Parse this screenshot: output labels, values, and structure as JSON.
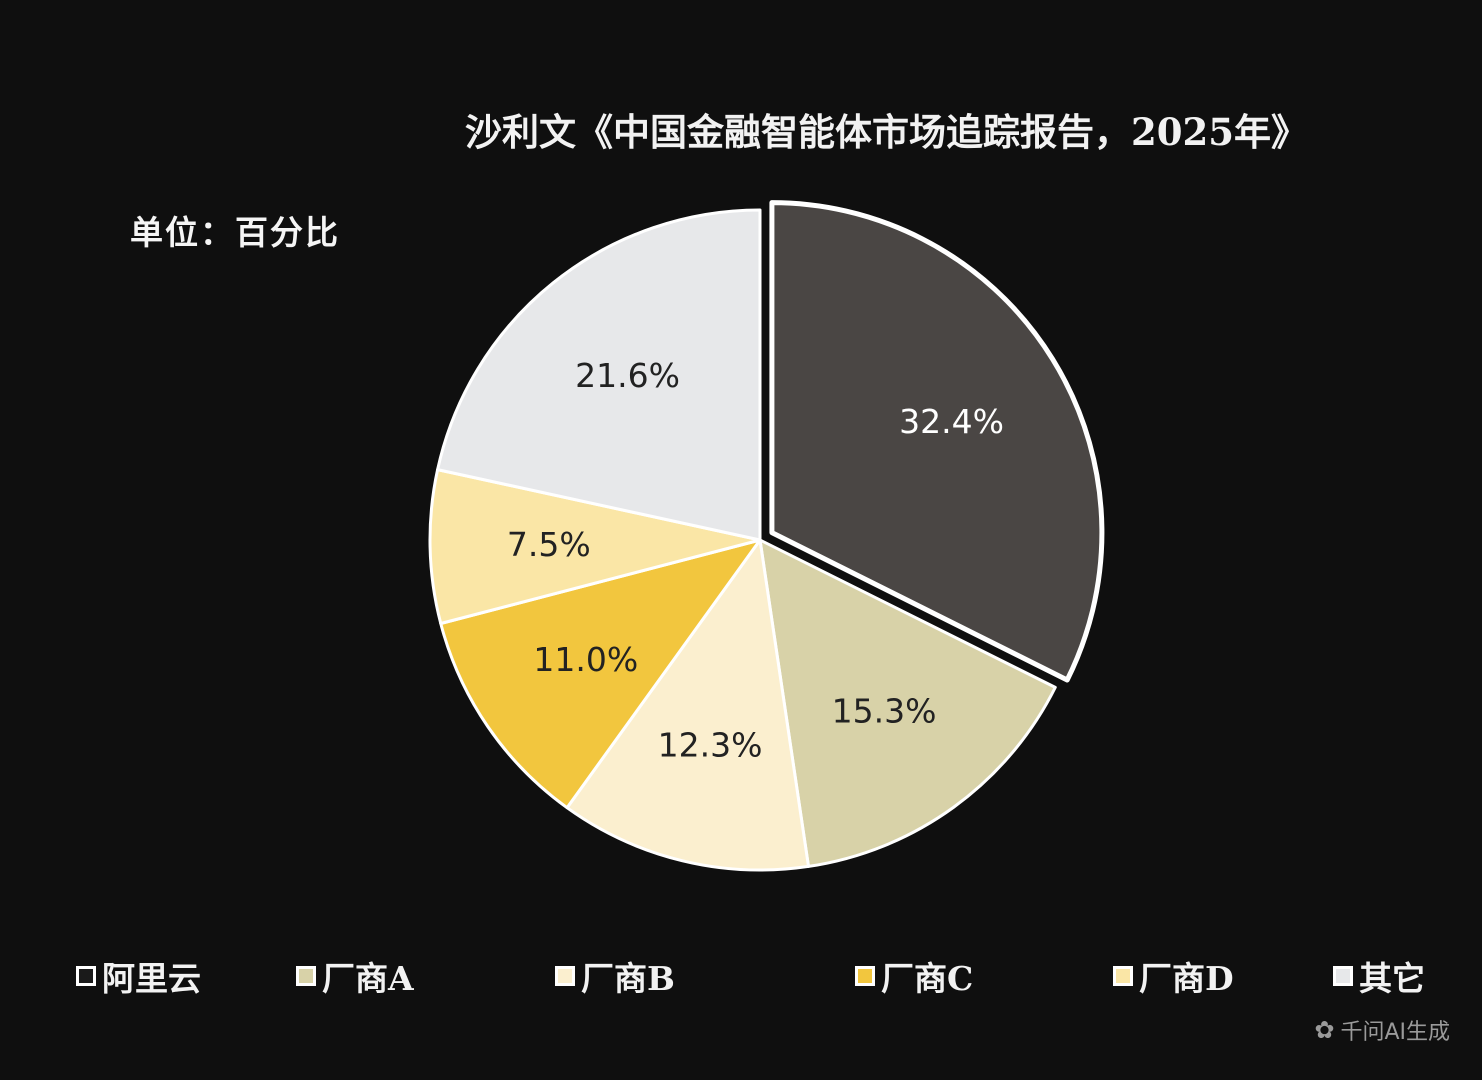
{
  "chart_data": {
    "type": "pie",
    "title": "沙利文《中国金融智能体市场追踪报告，2025年》",
    "unit_label": "单位：百分比",
    "slices": [
      {
        "name": "阿里云",
        "value": 32.4,
        "label": "32.4%",
        "color": "#4a4644",
        "label_color": "#ffffff",
        "exploded": true
      },
      {
        "name": "厂商A",
        "value": 15.3,
        "label": "15.3%",
        "color": "#d8d2a8",
        "label_color": "#222222"
      },
      {
        "name": "厂商B",
        "value": 12.3,
        "label": "12.3%",
        "color": "#fbefcf",
        "label_color": "#222222"
      },
      {
        "name": "厂商C",
        "value": 11.0,
        "label": "11.0%",
        "color": "#f2c63e",
        "label_color": "#222222"
      },
      {
        "name": "厂商D",
        "value": 7.5,
        "label": "7.5%",
        "color": "#fae6a6",
        "label_color": "#222222"
      },
      {
        "name": "其它",
        "value": 21.6,
        "label": "21.6%",
        "color": "#e7e8ea",
        "label_color": "#222222"
      }
    ],
    "legend": [
      {
        "label": "阿里云",
        "color": "#1a1a1a"
      },
      {
        "label": "厂商A",
        "color": "#d8d2a8"
      },
      {
        "label": "厂商B",
        "color": "#fbefcf"
      },
      {
        "label": "厂商C",
        "color": "#f2c63e"
      },
      {
        "label": "厂商D",
        "color": "#fae6a6"
      },
      {
        "label": "其它",
        "color": "#e7e8ea"
      }
    ],
    "legend_position": "bottom"
  },
  "watermark": {
    "text": "千问AI生成",
    "icon": "qianwen-logo-icon"
  }
}
